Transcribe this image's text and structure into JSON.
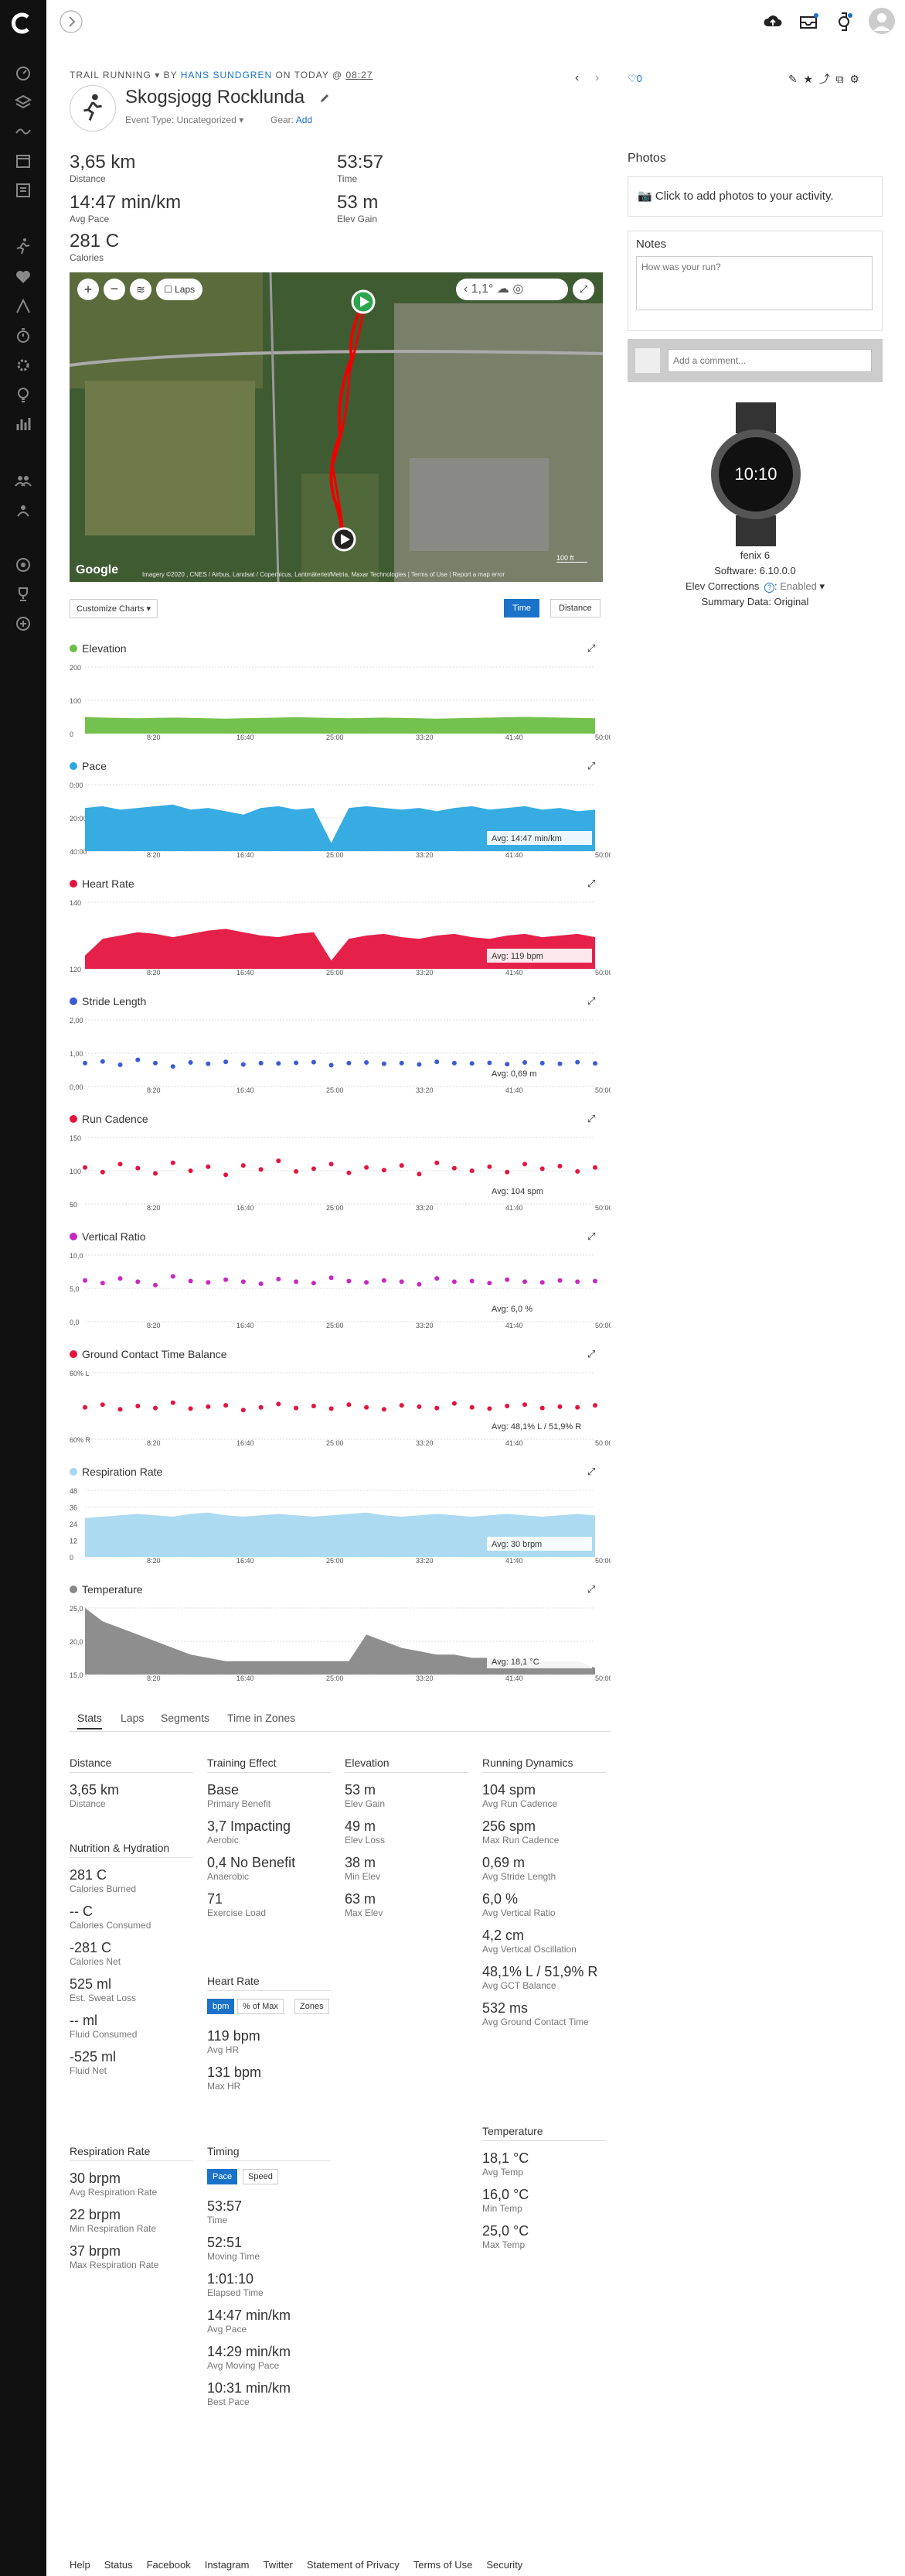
{
  "activity": {
    "type_label": "TRAIL RUNNING",
    "by_label": "BY",
    "author": "HANS SUNDGREN",
    "on_label": "ON TODAY @",
    "time": "08:27",
    "title": "Skogsjogg Rocklunda",
    "event_type": "Event Type: Uncategorized",
    "gear_label": "Gear:",
    "gear_add": "Add",
    "likes": "0"
  },
  "summary": [
    {
      "value": "3,65 km",
      "label": "Distance"
    },
    {
      "value": "53:57",
      "label": "Time"
    },
    {
      "value": "14:47 min/km",
      "label": "Avg Pace"
    },
    {
      "value": "53 m",
      "label": "Elev Gain"
    },
    {
      "value": "281 C",
      "label": "Calories"
    }
  ],
  "map": {
    "laps_label": "Laps",
    "weather_temp": "1,1°",
    "attribution": "Imagery ©2020 , CNES / Airbus, Landsat / Copernicus, Lantmäteriet/Metria, Maxar Technologies",
    "terms": "Terms of Use",
    "report": "Report a map error",
    "google": "Google",
    "scale": "100 ft"
  },
  "chart_controls": {
    "customize": "Customize Charts",
    "time": "Time",
    "distance": "Distance"
  },
  "x_ticks": [
    "8:20",
    "16:40",
    "25:00",
    "33:20",
    "41:40",
    "50:00"
  ],
  "chart_data": [
    {
      "type": "area",
      "title": "Elevation",
      "color": "#6cbe45",
      "ylim": [
        0,
        200
      ],
      "y_ticks": [
        "200",
        "100",
        "0"
      ],
      "values": [
        50,
        48,
        47,
        46,
        47,
        48,
        47,
        46,
        45,
        46,
        47,
        48,
        49,
        48,
        47,
        46,
        47,
        48,
        47,
        46,
        45,
        46,
        47,
        48,
        49,
        50,
        49,
        48,
        47,
        46
      ]
    },
    {
      "type": "area",
      "title": "Pace",
      "color": "#2ba8e0",
      "ylim": [
        0,
        40
      ],
      "y_ticks": [
        "0:00",
        "20:00",
        "40:00"
      ],
      "avg_label": "Avg: 14:47 min/km",
      "inverted": true,
      "values": [
        14,
        13,
        15,
        14,
        13,
        12,
        15,
        14,
        16,
        18,
        14,
        13,
        15,
        14,
        35,
        14,
        13,
        14,
        15,
        14,
        16,
        14,
        13,
        15,
        14,
        13,
        15,
        14,
        16,
        15
      ]
    },
    {
      "type": "area",
      "title": "Heart Rate",
      "color": "#e4143f",
      "ylim": [
        100,
        140
      ],
      "y_ticks": [
        "140",
        "120"
      ],
      "avg_label": "Avg: 119 bpm",
      "values": [
        108,
        118,
        120,
        122,
        121,
        119,
        121,
        123,
        124,
        122,
        120,
        119,
        121,
        122,
        105,
        118,
        120,
        121,
        119,
        118,
        120,
        121,
        119,
        118,
        120,
        121,
        119,
        120,
        121,
        119
      ]
    },
    {
      "type": "scatter",
      "title": "Stride Length",
      "color": "#3b5bd6",
      "ylim": [
        0,
        2
      ],
      "y_ticks": [
        "2,00",
        "1,00",
        "0,00"
      ],
      "avg_label": "Avg: 0,69 m",
      "values": [
        0.7,
        0.75,
        0.65,
        0.8,
        0.7,
        0.6,
        0.72,
        0.68,
        0.74,
        0.66,
        0.7,
        0.69,
        0.71,
        0.73,
        0.64,
        0.7,
        0.72,
        0.68,
        0.7,
        0.66,
        0.74,
        0.7,
        0.69,
        0.71,
        0.67,
        0.72,
        0.7,
        0.68,
        0.73,
        0.69
      ]
    },
    {
      "type": "scatter",
      "title": "Run Cadence",
      "color": "#e4143f",
      "ylim": [
        50,
        150
      ],
      "y_ticks": [
        "150",
        "100",
        "50"
      ],
      "avg_label": "Avg: 104 spm",
      "values": [
        105,
        98,
        110,
        104,
        96,
        112,
        100,
        106,
        94,
        108,
        102,
        115,
        99,
        103,
        110,
        97,
        105,
        101,
        108,
        95,
        112,
        104,
        100,
        106,
        98,
        110,
        103,
        107,
        99,
        105
      ]
    },
    {
      "type": "scatter",
      "title": "Vertical Ratio",
      "color": "#c928c0",
      "ylim": [
        0,
        10
      ],
      "y_ticks": [
        "10,0",
        "5,0",
        "0,0"
      ],
      "avg_label": "Avg: 6,0 %",
      "values": [
        6.2,
        5.8,
        6.5,
        6.0,
        5.5,
        6.8,
        6.1,
        5.9,
        6.3,
        6.0,
        5.7,
        6.4,
        6.0,
        5.8,
        6.6,
        6.1,
        5.9,
        6.2,
        6.0,
        5.6,
        6.5,
        6.0,
        6.1,
        5.8,
        6.3,
        6.0,
        5.9,
        6.2,
        6.0,
        6.1
      ]
    },
    {
      "type": "scatter",
      "title": "Ground Contact Time Balance",
      "color": "#e4143f",
      "ylim": [
        0,
        100
      ],
      "y_ticks": [
        "60% L",
        "60% R"
      ],
      "avg_label": "Avg: 48,1% L / 51,9% R",
      "values": [
        48,
        52,
        45,
        50,
        47,
        55,
        46,
        49,
        51,
        44,
        48,
        53,
        47,
        50,
        46,
        52,
        48,
        45,
        51,
        49,
        47,
        54,
        48,
        46,
        50,
        52,
        47,
        49,
        48,
        51
      ]
    },
    {
      "type": "area",
      "title": "Respiration Rate",
      "color": "#a8d8f0",
      "ylim": [
        0,
        48
      ],
      "y_ticks": [
        "48",
        "36",
        "24",
        "12",
        "0"
      ],
      "avg_label": "Avg: 30 brpm",
      "values": [
        28,
        29,
        30,
        31,
        30,
        29,
        31,
        32,
        30,
        29,
        30,
        31,
        30,
        29,
        30,
        31,
        32,
        30,
        29,
        30,
        31,
        30,
        29,
        30,
        31,
        30,
        29,
        30,
        31,
        30
      ]
    },
    {
      "type": "area",
      "title": "Temperature",
      "color": "#888888",
      "ylim": [
        15,
        25
      ],
      "y_ticks": [
        "25,0",
        "20,0",
        "15,0"
      ],
      "avg_label": "Avg: 18,1 °C",
      "values": [
        25,
        23,
        22,
        21,
        20,
        19,
        18,
        17.5,
        17,
        17,
        17,
        17,
        17,
        17,
        17,
        17,
        21,
        20,
        19,
        18.5,
        18,
        18,
        17.5,
        17.5,
        17,
        17,
        17,
        17,
        17,
        16
      ]
    }
  ],
  "stats_tabs": [
    "Stats",
    "Laps",
    "Segments",
    "Time in Zones"
  ],
  "stats": {
    "distance": {
      "title": "Distance",
      "items": [
        {
          "value": "3,65 km",
          "label": "Distance"
        }
      ]
    },
    "nutrition": {
      "title": "Nutrition & Hydration",
      "items": [
        {
          "value": "281 C",
          "label": "Calories Burned"
        },
        {
          "value": "-- C",
          "label": "Calories Consumed"
        },
        {
          "value": "-281 C",
          "label": "Calories Net"
        },
        {
          "value": "525 ml",
          "label": "Est. Sweat Loss"
        },
        {
          "value": "-- ml",
          "label": "Fluid Consumed"
        },
        {
          "value": "-525 ml",
          "label": "Fluid Net"
        }
      ]
    },
    "respiration": {
      "title": "Respiration Rate",
      "items": [
        {
          "value": "30 brpm",
          "label": "Avg Respiration Rate"
        },
        {
          "value": "22 brpm",
          "label": "Min Respiration Rate"
        },
        {
          "value": "37 brpm",
          "label": "Max Respiration Rate"
        }
      ]
    },
    "training": {
      "title": "Training Effect",
      "items": [
        {
          "value": "Base",
          "label": "Primary Benefit"
        },
        {
          "value": "3,7 Impacting",
          "label": "Aerobic"
        },
        {
          "value": "0,4 No Benefit",
          "label": "Anaerobic"
        },
        {
          "value": "71",
          "label": "Exercise Load"
        }
      ]
    },
    "heart_rate": {
      "title": "Heart Rate",
      "buttons": [
        "bpm",
        "% of Max",
        "Zones"
      ],
      "items": [
        {
          "value": "119 bpm",
          "label": "Avg HR"
        },
        {
          "value": "131 bpm",
          "label": "Max HR"
        }
      ]
    },
    "timing": {
      "title": "Timing",
      "buttons": [
        "Pace",
        "Speed"
      ],
      "items": [
        {
          "value": "53:57",
          "label": "Time"
        },
        {
          "value": "52:51",
          "label": "Moving Time"
        },
        {
          "value": "1:01:10",
          "label": "Elapsed Time"
        },
        {
          "value": "14:47 min/km",
          "label": "Avg Pace"
        },
        {
          "value": "14:29 min/km",
          "label": "Avg Moving Pace"
        },
        {
          "value": "10:31 min/km",
          "label": "Best Pace"
        }
      ]
    },
    "elevation": {
      "title": "Elevation",
      "items": [
        {
          "value": "53 m",
          "label": "Elev Gain"
        },
        {
          "value": "49 m",
          "label": "Elev Loss"
        },
        {
          "value": "38 m",
          "label": "Min Elev"
        },
        {
          "value": "63 m",
          "label": "Max Elev"
        }
      ]
    },
    "dynamics": {
      "title": "Running Dynamics",
      "items": [
        {
          "value": "104 spm",
          "label": "Avg Run Cadence"
        },
        {
          "value": "256 spm",
          "label": "Max Run Cadence"
        },
        {
          "value": "0,69 m",
          "label": "Avg Stride Length"
        },
        {
          "value": "6,0 %",
          "label": "Avg Vertical Ratio"
        },
        {
          "value": "4,2 cm",
          "label": "Avg Vertical Oscillation"
        },
        {
          "value": "48,1% L / 51,9% R",
          "label": "Avg GCT Balance"
        },
        {
          "value": "532 ms",
          "label": "Avg Ground Contact Time"
        }
      ]
    },
    "temperature": {
      "title": "Temperature",
      "items": [
        {
          "value": "18,1 °C",
          "label": "Avg Temp"
        },
        {
          "value": "16,0 °C",
          "label": "Min Temp"
        },
        {
          "value": "25,0 °C",
          "label": "Max Temp"
        }
      ]
    }
  },
  "right": {
    "photos_title": "Photos",
    "photos_cta": "Click to add photos to your activity.",
    "notes_title": "Notes",
    "notes_placeholder": "How was your run?",
    "comment_placeholder": "Add a comment...",
    "device_name": "fenix 6",
    "software": "Software: 6.10.0.0",
    "elev_corr_label": "Elev Corrections",
    "elev_corr_value": "Enabled",
    "summary_data": "Summary Data: Original",
    "watch_time": "10:10"
  },
  "footer": [
    "Help",
    "Status",
    "Facebook",
    "Instagram",
    "Twitter",
    "Statement of Privacy",
    "Terms of Use",
    "Security"
  ]
}
